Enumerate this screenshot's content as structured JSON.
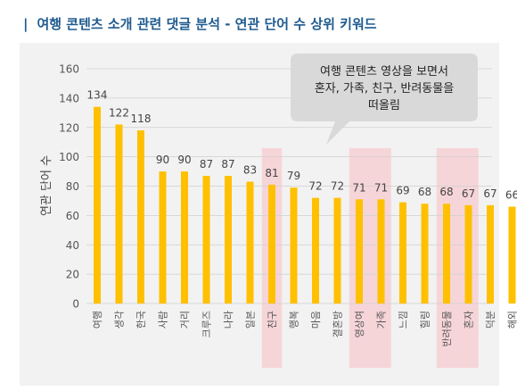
{
  "header": {
    "pipe": "|",
    "title": "여행 콘텐츠 소개 관련 댓글 분석 - 연관 단어 수 상위 키워드"
  },
  "callout": {
    "lines": [
      "여행 콘텐츠 영상을 보면서",
      "혼자, 가족, 친구, 반려동물을",
      "떠올림"
    ]
  },
  "colors": {
    "bar": "#ffc000",
    "highlight": "#f6d5d8",
    "callout_bg": "#d9d9d9",
    "title": "#1f5b8f"
  },
  "chart_data": {
    "type": "bar",
    "title": "",
    "xlabel": "",
    "ylabel": "연관 단어 수",
    "ylim": [
      0,
      160
    ],
    "yticks": [
      0,
      20,
      40,
      60,
      80,
      100,
      120,
      140,
      160
    ],
    "grid": true,
    "categories": [
      "여행",
      "생각",
      "한국",
      "사람",
      "거리",
      "크루즈",
      "나라",
      "일본",
      "친구",
      "행복",
      "마음",
      "결혼방",
      "영상여",
      "가족",
      "느낌",
      "힐링",
      "반려동물",
      "혼자",
      "덕분",
      "해외"
    ],
    "values": [
      134,
      122,
      118,
      90,
      90,
      87,
      87,
      83,
      81,
      79,
      72,
      72,
      71,
      71,
      69,
      68,
      68,
      67,
      67,
      66
    ],
    "highlighted_groups": [
      [
        8
      ],
      [
        12,
        13
      ],
      [
        16,
        17
      ]
    ]
  }
}
